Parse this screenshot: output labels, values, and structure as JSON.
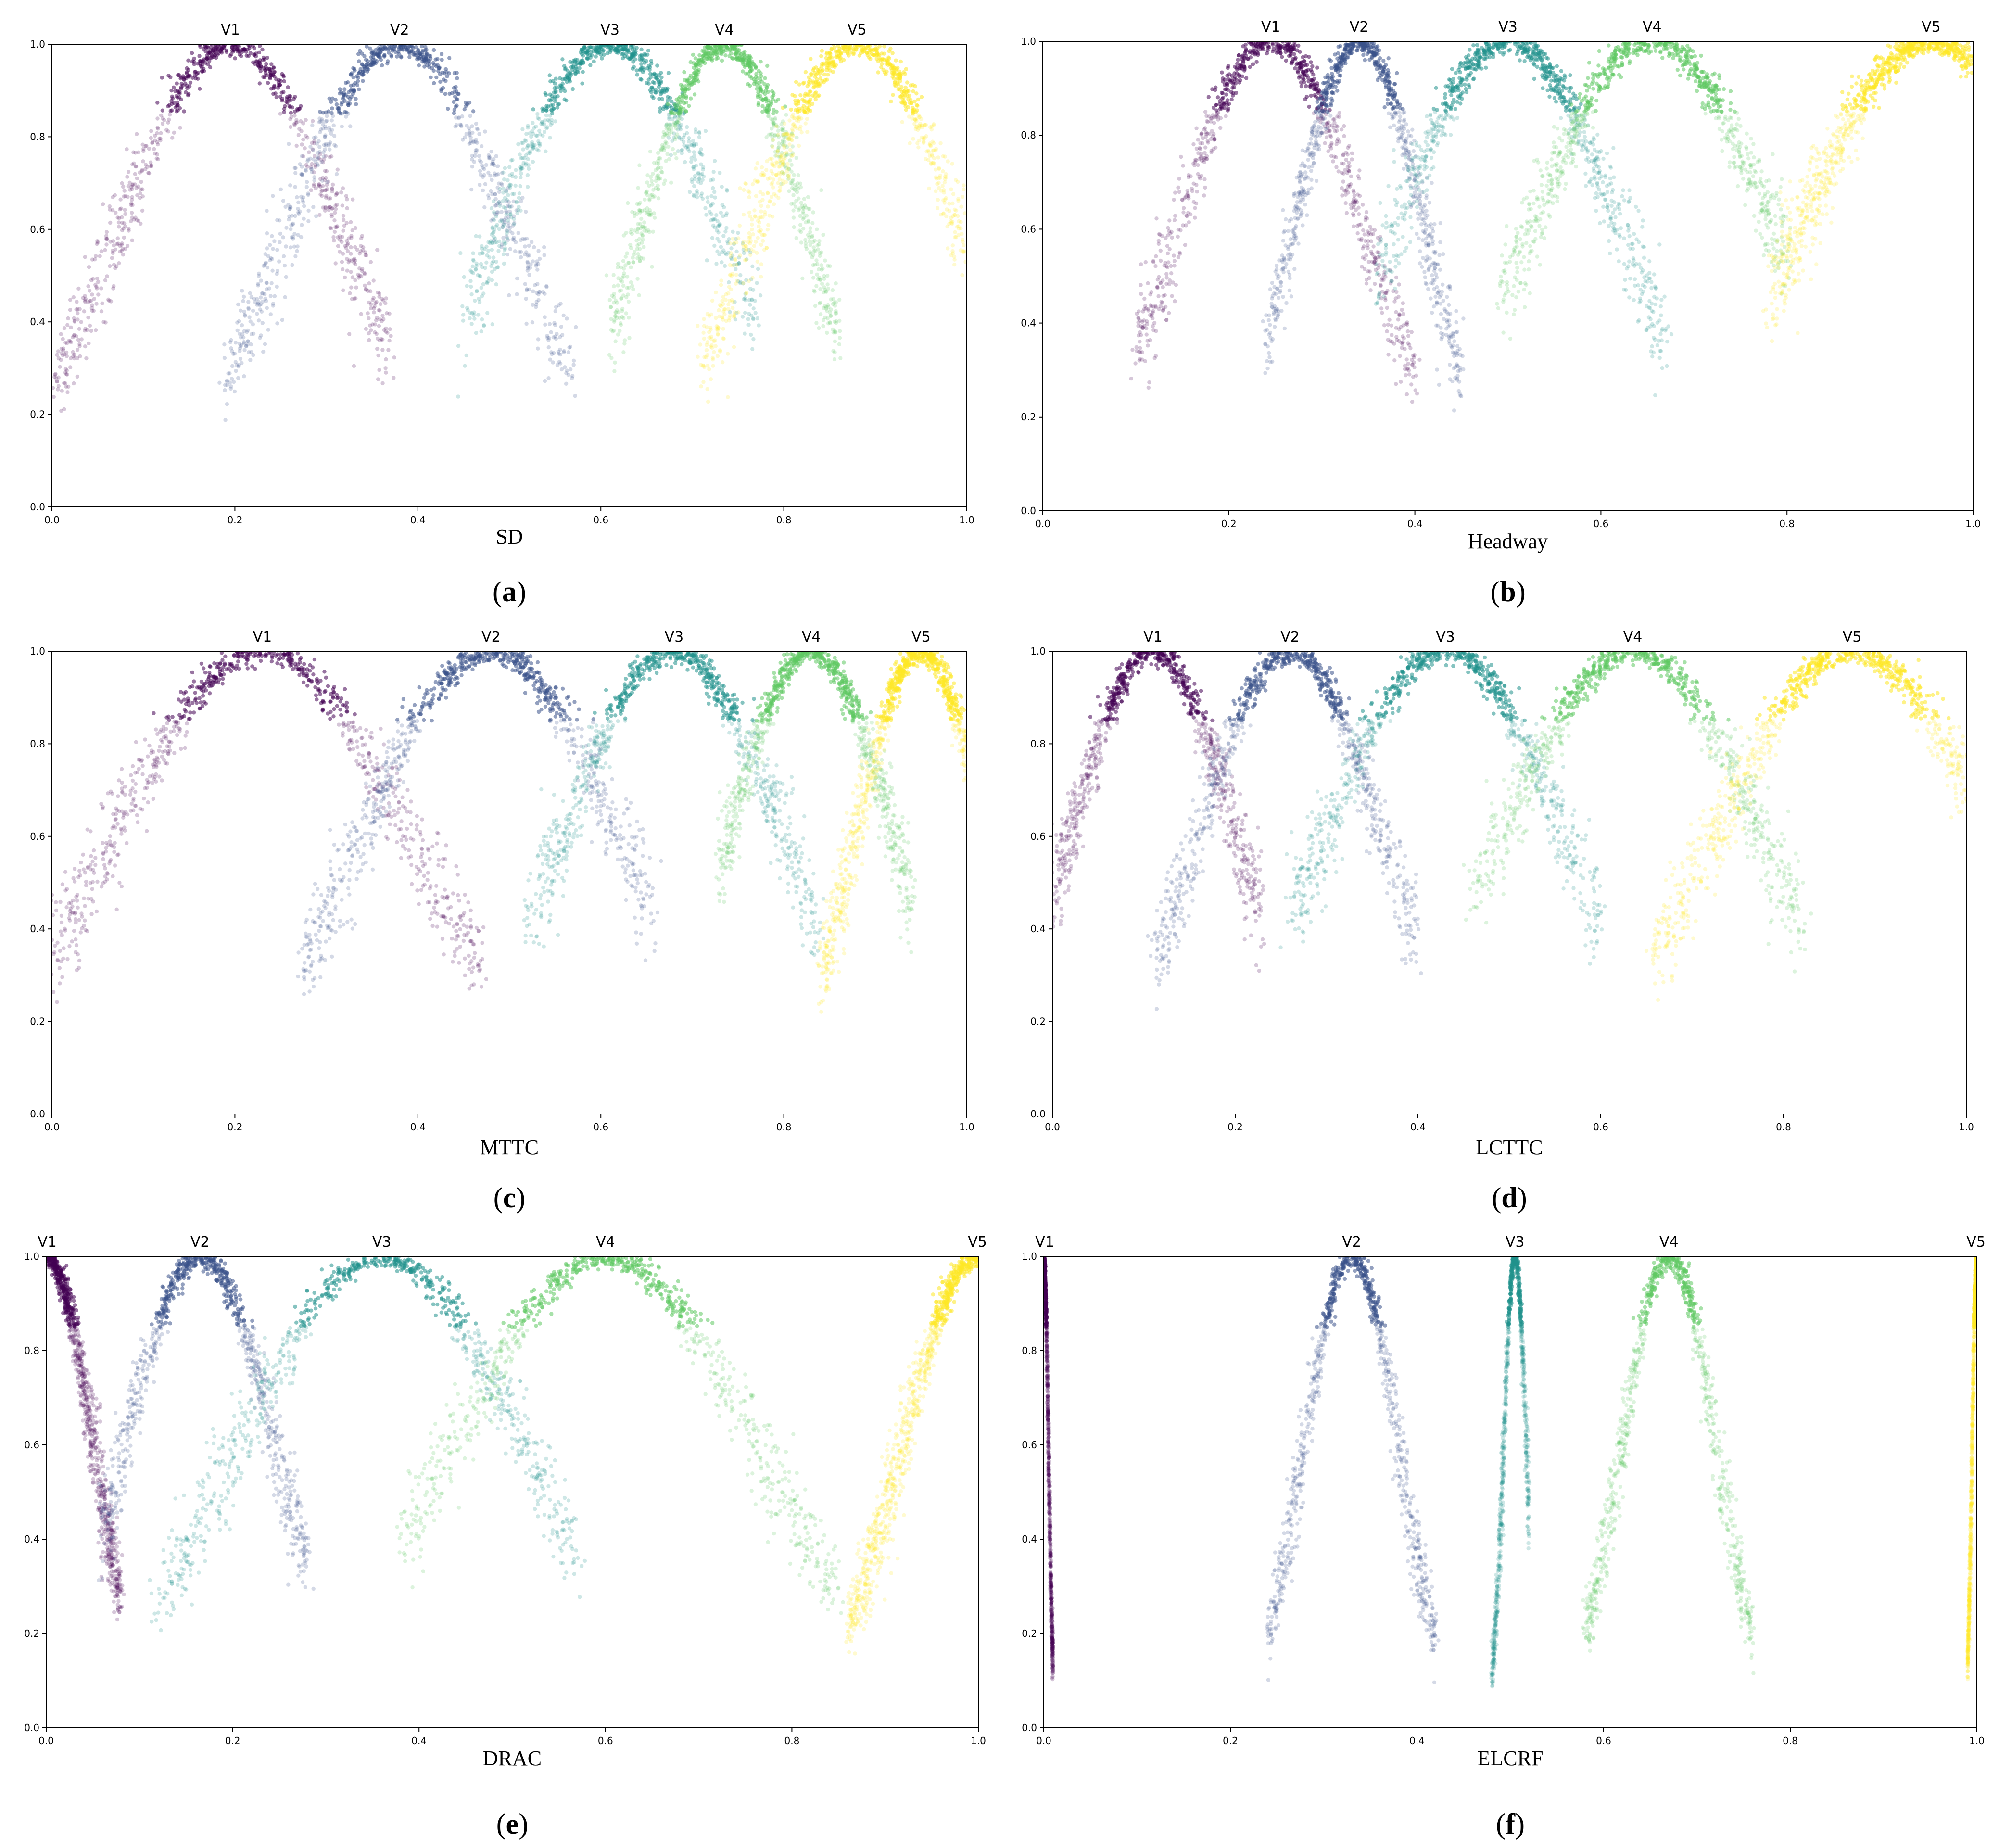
{
  "figure": {
    "colors": {
      "V1": "#440154",
      "V2": "#3b528b",
      "V3": "#21918c",
      "V4": "#5ec962",
      "V5": "#fde725",
      "axis": "#000000"
    }
  },
  "chart_data": [
    {
      "type": "scatter",
      "panel": "a",
      "caption": "(a)",
      "caption_letter": "a",
      "xlabel": "SD",
      "ylabel": "",
      "xlim": [
        0,
        1
      ],
      "ylim": [
        0,
        1
      ],
      "xticks": [
        "0.0",
        "0.2",
        "0.4",
        "0.6",
        "0.8",
        "1.0"
      ],
      "yticks": [
        "0.0",
        "0.2",
        "0.4",
        "0.6",
        "0.8",
        "1.0"
      ],
      "grid": false,
      "legend": "none",
      "series": [
        {
          "name": "V1",
          "peak": 0.195,
          "spread": 0.12,
          "clip_left": 0.0,
          "clip_right": 0.37
        },
        {
          "name": "V2",
          "peak": 0.38,
          "spread": 0.12,
          "clip_left": 0.19,
          "clip_right": 0.57
        },
        {
          "name": "V3",
          "peak": 0.61,
          "spread": 0.12,
          "clip_left": 0.45,
          "clip_right": 0.77
        },
        {
          "name": "V4",
          "peak": 0.735,
          "spread": 0.09,
          "clip_left": 0.61,
          "clip_right": 0.86
        },
        {
          "name": "V5",
          "peak": 0.88,
          "spread": 0.11,
          "clip_left": 0.71,
          "clip_right": 1.0
        }
      ]
    },
    {
      "type": "scatter",
      "panel": "b",
      "caption": "(b)",
      "caption_letter": "b",
      "xlabel": "Headway",
      "ylabel": "",
      "xlim": [
        0,
        1
      ],
      "ylim": [
        0,
        1
      ],
      "xticks": [
        "0.0",
        "0.2",
        "0.4",
        "0.6",
        "0.8",
        "1.0"
      ],
      "yticks": [
        "0.0",
        "0.2",
        "0.4",
        "0.6",
        "0.8",
        "1.0"
      ],
      "grid": false,
      "legend": "none",
      "series": [
        {
          "name": "V1",
          "peak": 0.245,
          "spread": 0.1,
          "clip_left": 0.1,
          "clip_right": 0.4
        },
        {
          "name": "V2",
          "peak": 0.34,
          "spread": 0.07,
          "clip_left": 0.24,
          "clip_right": 0.45
        },
        {
          "name": "V3",
          "peak": 0.5,
          "spread": 0.12,
          "clip_left": 0.36,
          "clip_right": 0.67
        },
        {
          "name": "V4",
          "peak": 0.655,
          "spread": 0.13,
          "clip_left": 0.49,
          "clip_right": 0.8
        },
        {
          "name": "V5",
          "peak": 0.955,
          "spread": 0.14,
          "clip_left": 0.78,
          "clip_right": 1.0
        }
      ]
    },
    {
      "type": "scatter",
      "panel": "c",
      "caption": "(c)",
      "caption_letter": "c",
      "xlabel": "MTTC",
      "ylabel": "",
      "xlim": [
        0,
        1
      ],
      "ylim": [
        0,
        1
      ],
      "xticks": [
        "0.0",
        "0.2",
        "0.4",
        "0.6",
        "0.8",
        "1.0"
      ],
      "yticks": [
        "0.0",
        "0.2",
        "0.4",
        "0.6",
        "0.8",
        "1.0"
      ],
      "grid": false,
      "legend": "none",
      "series": [
        {
          "name": "V1",
          "peak": 0.23,
          "spread": 0.16,
          "clip_left": 0.0,
          "clip_right": 0.47
        },
        {
          "name": "V2",
          "peak": 0.48,
          "spread": 0.14,
          "clip_left": 0.27,
          "clip_right": 0.66
        },
        {
          "name": "V3",
          "peak": 0.68,
          "spread": 0.12,
          "clip_left": 0.52,
          "clip_right": 0.84
        },
        {
          "name": "V4",
          "peak": 0.83,
          "spread": 0.09,
          "clip_left": 0.73,
          "clip_right": 0.94
        },
        {
          "name": "V5",
          "peak": 0.95,
          "spread": 0.07,
          "clip_left": 0.84,
          "clip_right": 1.0
        }
      ]
    },
    {
      "type": "scatter",
      "panel": "d",
      "caption": "(d)",
      "caption_letter": "d",
      "xlabel": "LCTTC",
      "ylabel": "",
      "xlim": [
        0,
        1
      ],
      "ylim": [
        0,
        1
      ],
      "xticks": [
        "0.0",
        "0.2",
        "0.4",
        "0.6",
        "0.8",
        "1.0"
      ],
      "yticks": [
        "0.0",
        "0.2",
        "0.4",
        "0.6",
        "0.8",
        "1.0"
      ],
      "grid": false,
      "legend": "none",
      "series": [
        {
          "name": "V1",
          "peak": 0.11,
          "spread": 0.09,
          "clip_left": 0.0,
          "clip_right": 0.23
        },
        {
          "name": "V2",
          "peak": 0.26,
          "spread": 0.1,
          "clip_left": 0.11,
          "clip_right": 0.4
        },
        {
          "name": "V3",
          "peak": 0.43,
          "spread": 0.13,
          "clip_left": 0.26,
          "clip_right": 0.6
        },
        {
          "name": "V4",
          "peak": 0.635,
          "spread": 0.14,
          "clip_left": 0.46,
          "clip_right": 0.82
        },
        {
          "name": "V5",
          "peak": 0.875,
          "spread": 0.15,
          "clip_left": 0.66,
          "clip_right": 1.0
        }
      ]
    },
    {
      "type": "scatter",
      "panel": "e",
      "caption": "(e)",
      "caption_letter": "e",
      "xlabel": "DRAC",
      "ylabel": "",
      "xlim": [
        0,
        1
      ],
      "ylim": [
        0,
        1
      ],
      "xticks": [
        "0.0",
        "0.2",
        "0.4",
        "0.6",
        "0.8",
        "1.0"
      ],
      "yticks": [
        "0.0",
        "0.2",
        "0.4",
        "0.6",
        "0.8",
        "1.0"
      ],
      "grid": false,
      "legend": "none",
      "series": [
        {
          "name": "V1",
          "peak": 0.0,
          "spread": 0.05,
          "clip_left": 0.0,
          "clip_right": 0.08
        },
        {
          "name": "V2",
          "peak": 0.165,
          "spread": 0.08,
          "clip_left": 0.06,
          "clip_right": 0.28
        },
        {
          "name": "V3",
          "peak": 0.36,
          "spread": 0.15,
          "clip_left": 0.12,
          "clip_right": 0.57
        },
        {
          "name": "V4",
          "peak": 0.6,
          "spread": 0.16,
          "clip_left": 0.38,
          "clip_right": 0.85
        },
        {
          "name": "V5",
          "peak": 1.0,
          "spread": 0.08,
          "clip_left": 0.86,
          "clip_right": 1.0
        }
      ]
    },
    {
      "type": "scatter",
      "panel": "f",
      "caption": "(f)",
      "caption_letter": "f",
      "xlabel": "ELCRF",
      "ylabel": "",
      "xlim": [
        0,
        1
      ],
      "ylim": [
        0,
        1
      ],
      "xticks": [
        "0.0",
        "0.2",
        "0.4",
        "0.6",
        "0.8",
        "1.0"
      ],
      "yticks": [
        "0.0",
        "0.2",
        "0.4",
        "0.6",
        "0.8",
        "1.0"
      ],
      "grid": false,
      "legend": "none",
      "series": [
        {
          "name": "V1",
          "peak": 0.0,
          "spread": 0.005,
          "clip_left": 0.0,
          "clip_right": 0.01
        },
        {
          "name": "V2",
          "peak": 0.33,
          "spread": 0.05,
          "clip_left": 0.24,
          "clip_right": 0.42
        },
        {
          "name": "V3",
          "peak": 0.505,
          "spread": 0.012,
          "clip_left": 0.48,
          "clip_right": 0.52
        },
        {
          "name": "V4",
          "peak": 0.67,
          "spread": 0.05,
          "clip_left": 0.58,
          "clip_right": 0.76
        },
        {
          "name": "V5",
          "peak": 1.0,
          "spread": 0.005,
          "clip_left": 0.99,
          "clip_right": 1.0
        }
      ]
    }
  ]
}
